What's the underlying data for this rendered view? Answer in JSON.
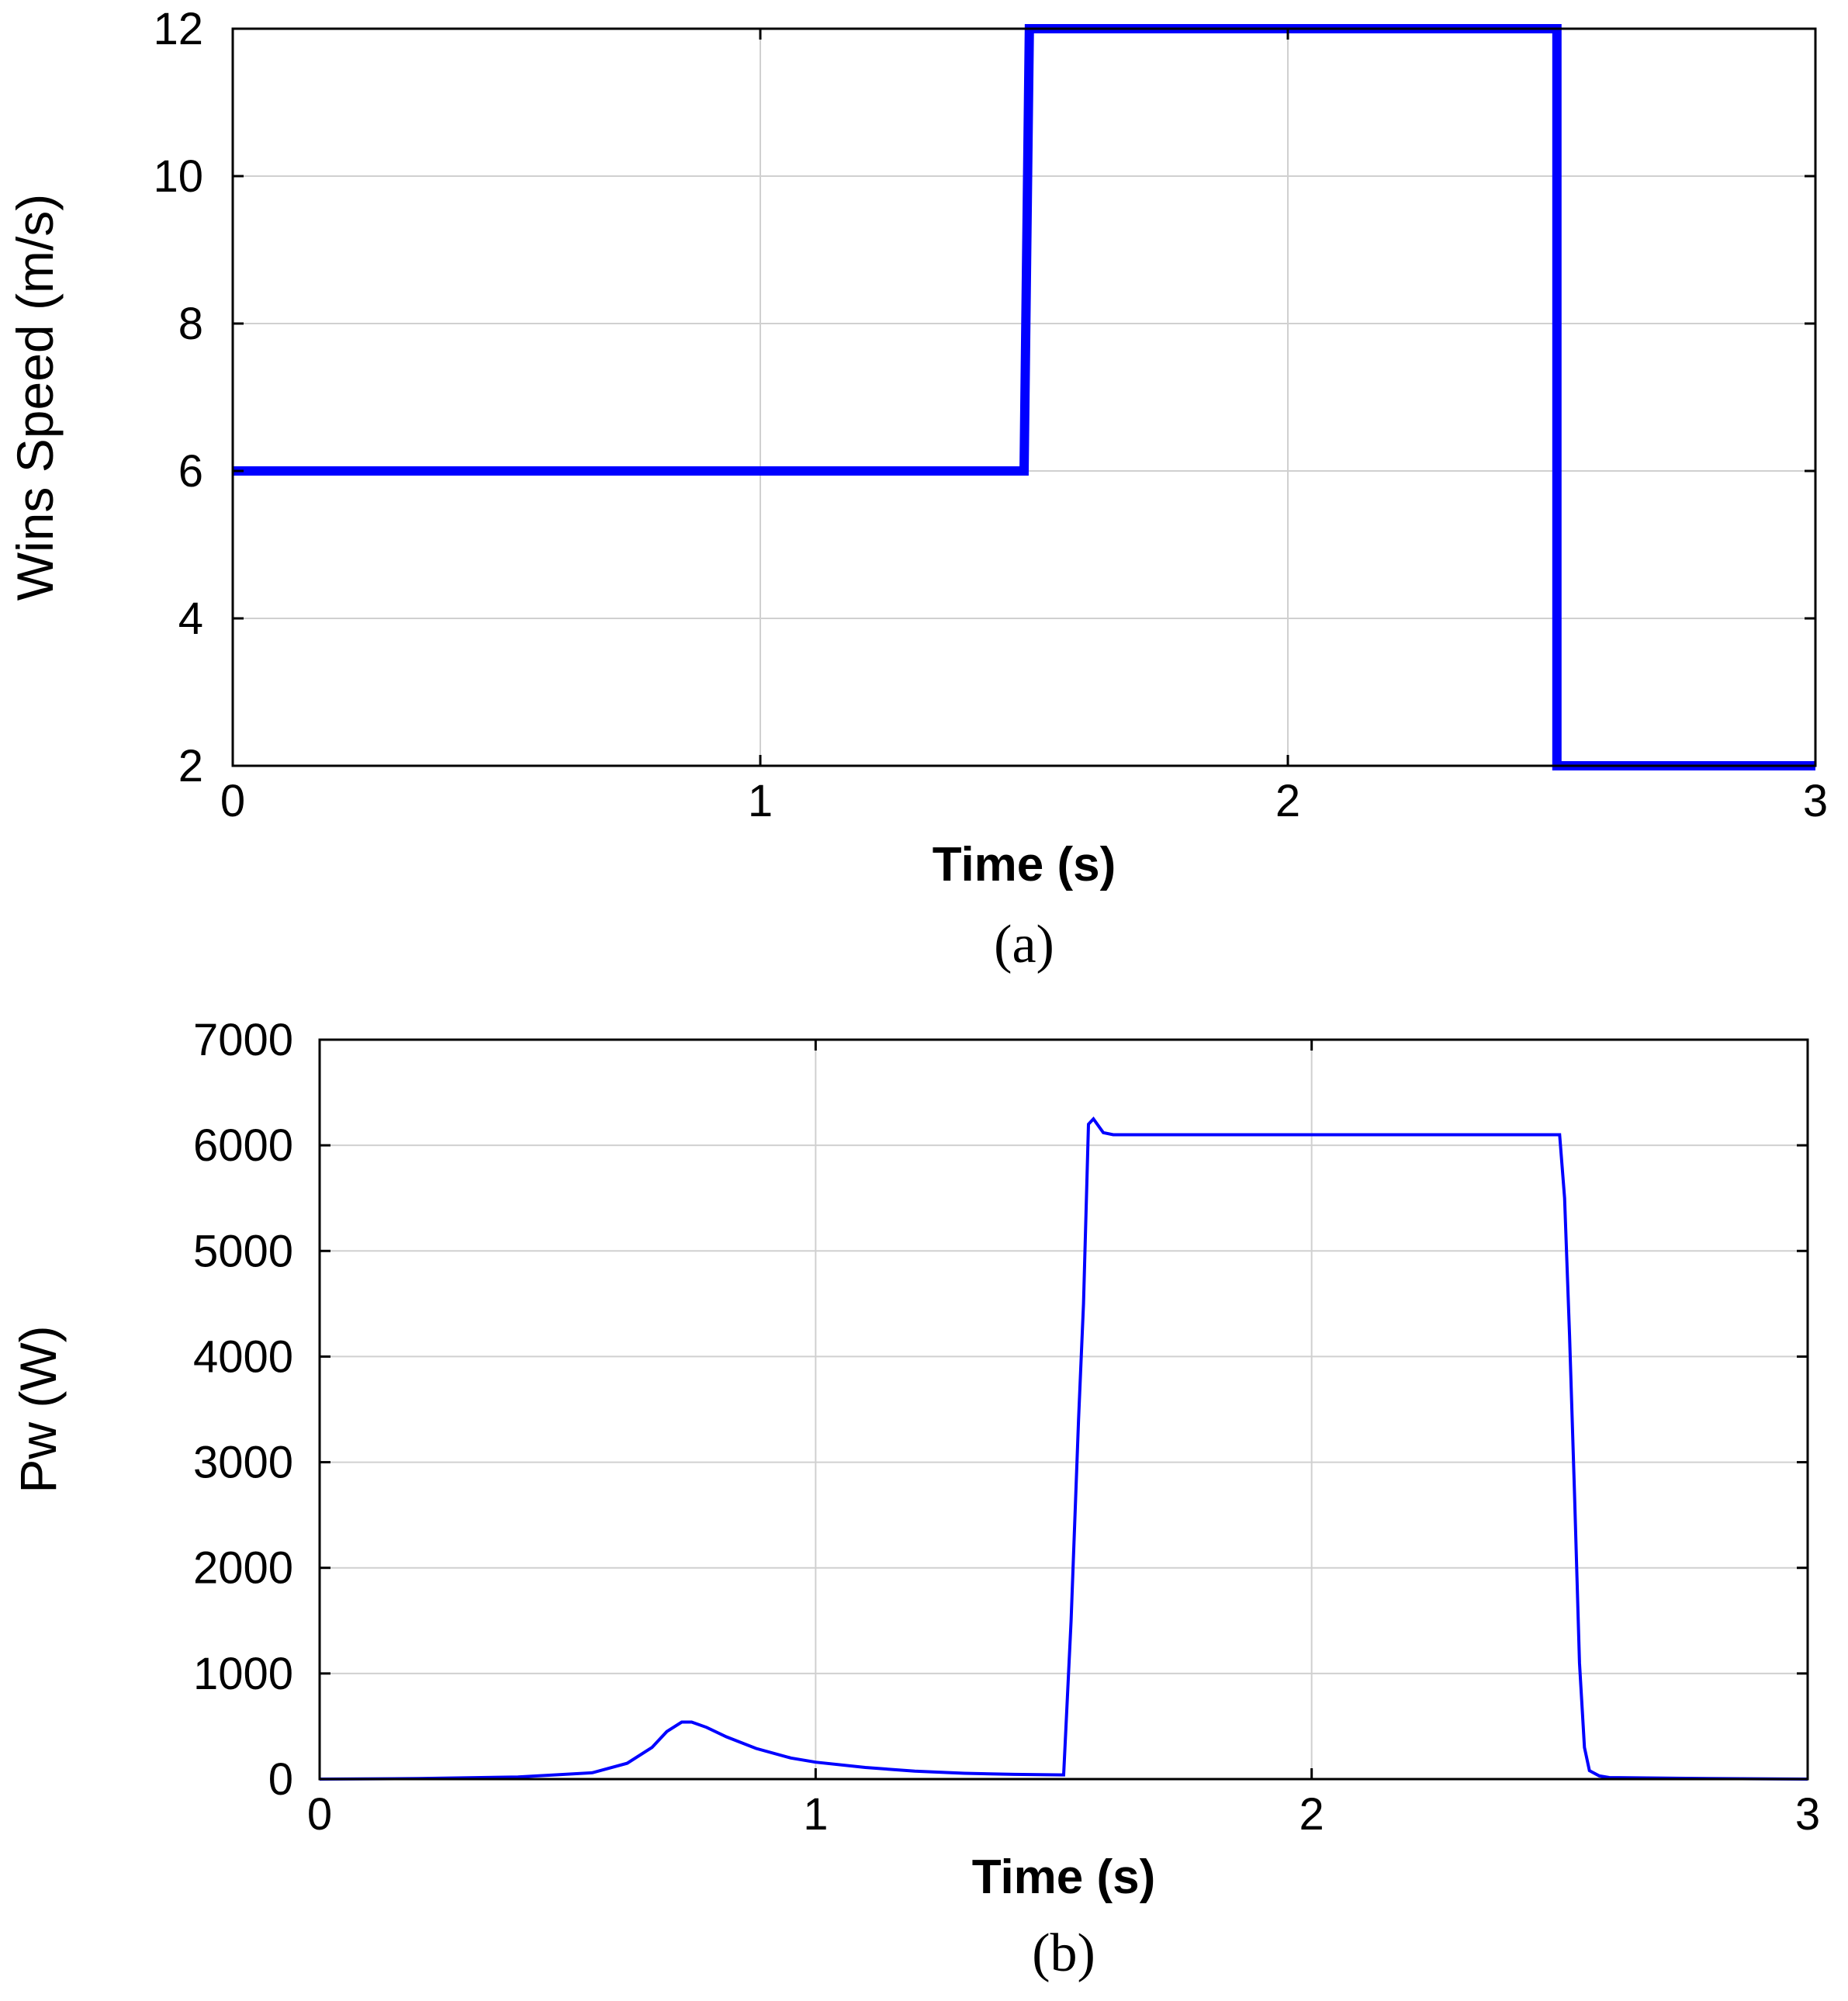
{
  "chart_data": [
    {
      "type": "line",
      "panel_label": "(a)",
      "xlabel": "Time (s)",
      "ylabel": "Wins Speed (m/s)",
      "xlim": [
        0,
        3
      ],
      "ylim": [
        2,
        12
      ],
      "xticks": [
        0,
        1,
        2,
        3
      ],
      "yticks": [
        2,
        4,
        6,
        8,
        10,
        12
      ],
      "grid": true,
      "color": "#0000ff",
      "series": [
        {
          "x": [
            0,
            1.5,
            1.5,
            1.51,
            2.5,
            2.51,
            2.51,
            3
          ],
          "y": [
            6,
            6,
            6,
            12,
            12,
            12,
            2,
            2
          ]
        }
      ]
    },
    {
      "type": "line",
      "panel_label": "(b)",
      "xlabel": "Time (s)",
      "ylabel": "Pw (W)",
      "xlim": [
        0,
        3
      ],
      "ylim": [
        0,
        7000
      ],
      "xticks": [
        0,
        1,
        2,
        3
      ],
      "yticks": [
        0,
        1000,
        2000,
        3000,
        4000,
        5000,
        6000,
        7000
      ],
      "grid": true,
      "color": "#0000ff",
      "series": [
        {
          "x": [
            0,
            0.2,
            0.4,
            0.55,
            0.62,
            0.67,
            0.7,
            0.73,
            0.75,
            0.78,
            0.82,
            0.88,
            0.95,
            1.0,
            1.1,
            1.2,
            1.3,
            1.4,
            1.5,
            1.515,
            1.53,
            1.54,
            1.55,
            1.56,
            1.58,
            1.6,
            1.8,
            2.0,
            2.2,
            2.4,
            2.5,
            2.51,
            2.52,
            2.53,
            2.54,
            2.55,
            2.56,
            2.58,
            2.6,
            2.8,
            3.0
          ],
          "y": [
            0,
            5,
            20,
            60,
            150,
            300,
            450,
            540,
            540,
            490,
            400,
            290,
            200,
            160,
            110,
            75,
            55,
            45,
            40,
            1500,
            3400,
            4500,
            6200,
            6250,
            6120,
            6100,
            6100,
            6100,
            6100,
            6100,
            6100,
            5500,
            4200,
            2700,
            1100,
            300,
            80,
            30,
            15,
            5,
            0
          ]
        }
      ]
    }
  ]
}
